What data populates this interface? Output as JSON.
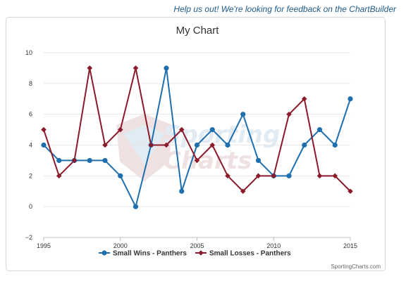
{
  "header": {
    "feedback_link": "Help us out! We're looking for feedback on the ChartBuilder"
  },
  "footer": {
    "credit": "SportingCharts.com"
  },
  "watermark": {
    "line1": "Sporting",
    "line2": "Charts"
  },
  "chart_data": {
    "type": "line",
    "title": "My Chart",
    "xlabel": "",
    "ylabel": "",
    "xlim": [
      1995,
      2015
    ],
    "ylim": [
      -2,
      10
    ],
    "x_ticks": [
      1995,
      2000,
      2005,
      2010,
      2015
    ],
    "y_ticks": [
      -2,
      0,
      2,
      4,
      6,
      8,
      10
    ],
    "grid": true,
    "legend_position": "bottom",
    "x": [
      1995,
      1996,
      1997,
      1998,
      1999,
      2000,
      2001,
      2002,
      2003,
      2004,
      2005,
      2006,
      2007,
      2008,
      2009,
      2010,
      2011,
      2012,
      2013,
      2014,
      2015
    ],
    "series": [
      {
        "name": "Small Wins - Panthers",
        "color": "#1f6fae",
        "marker": "circle",
        "values": [
          4,
          3,
          3,
          3,
          3,
          2,
          0,
          4,
          9,
          1,
          4,
          5,
          4,
          6,
          3,
          2,
          2,
          4,
          5,
          4,
          7
        ]
      },
      {
        "name": "Small Losses - Panthers",
        "color": "#8b1a2b",
        "marker": "diamond",
        "values": [
          5,
          2,
          3,
          9,
          4,
          5,
          9,
          4,
          4,
          5,
          3,
          4,
          2,
          1,
          2,
          2,
          6,
          7,
          2,
          2,
          1
        ]
      }
    ]
  }
}
